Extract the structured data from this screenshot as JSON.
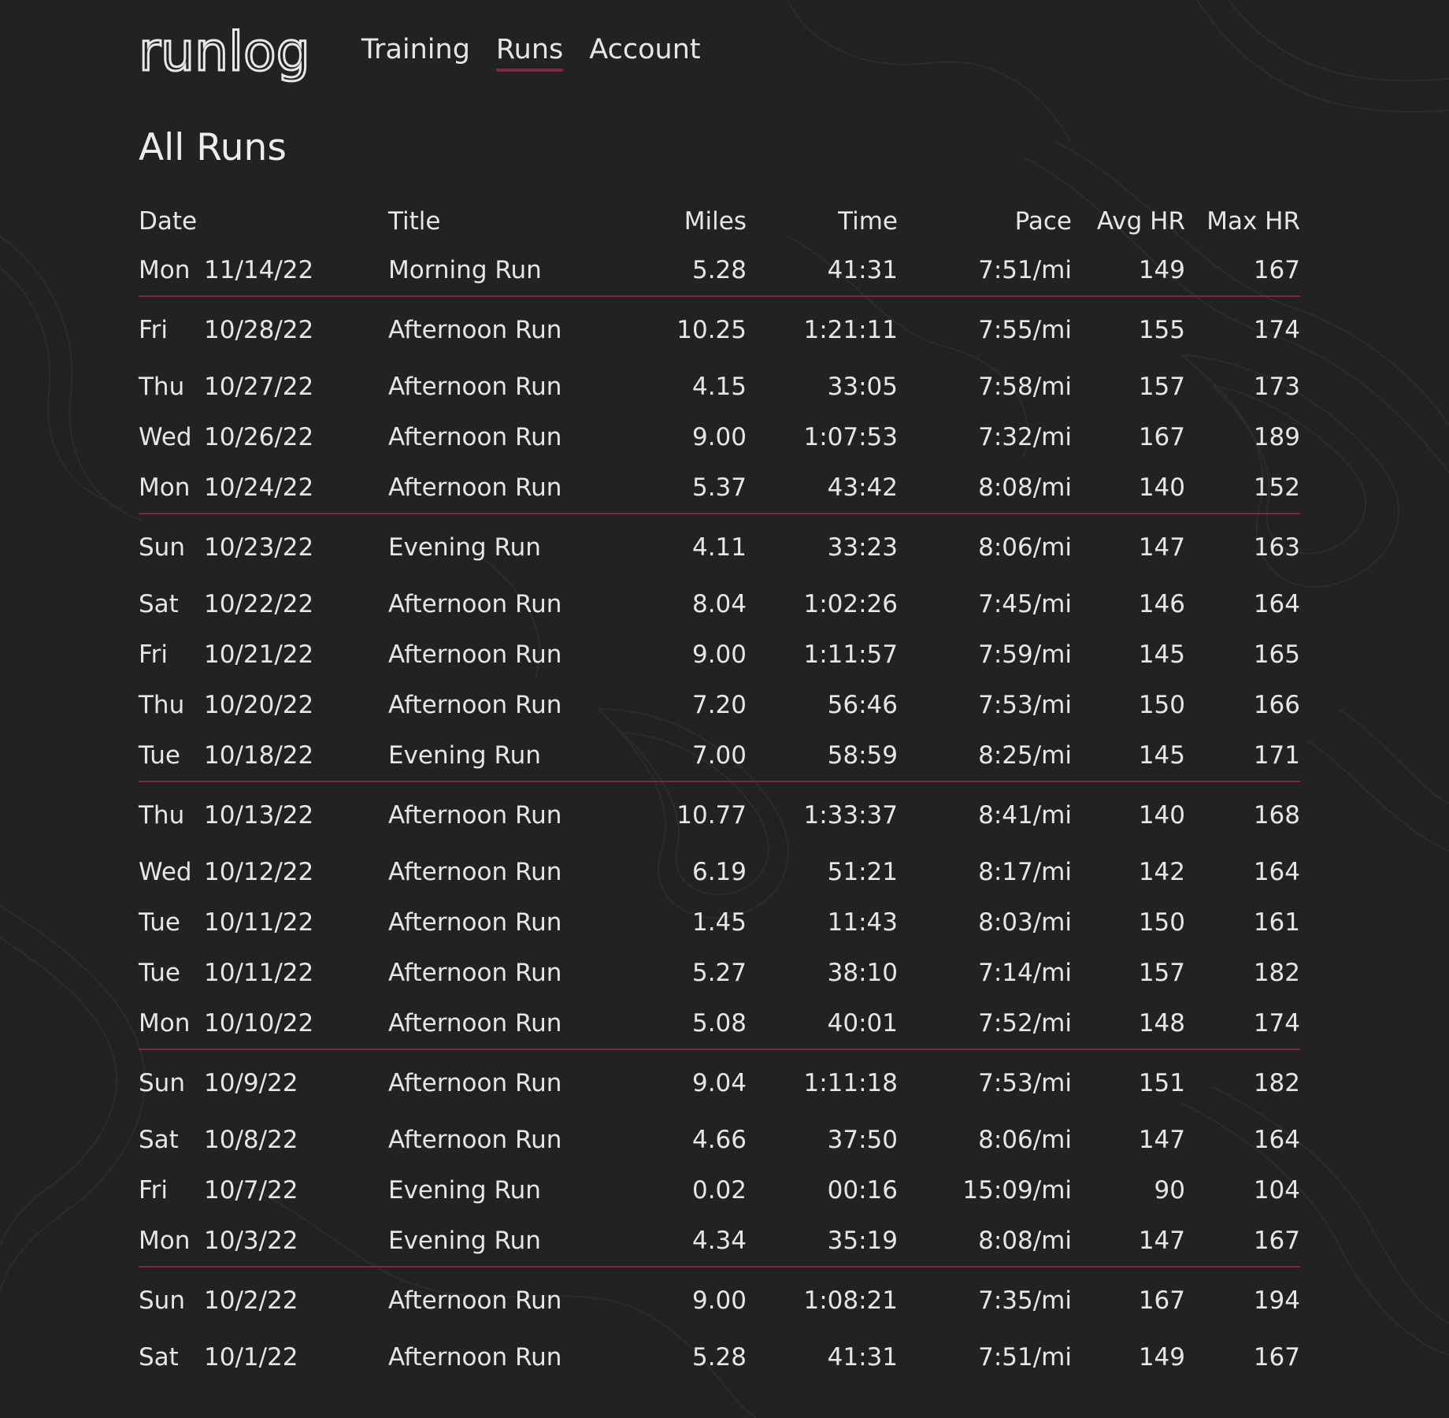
{
  "brand": {
    "logo": "runlog"
  },
  "nav": [
    {
      "label": "Training",
      "active": false
    },
    {
      "label": "Runs",
      "active": true
    },
    {
      "label": "Account",
      "active": false
    }
  ],
  "page_title": "All Runs",
  "colors": {
    "background": "#222222",
    "text": "#e6e6e6",
    "accent": "#7a2a40"
  },
  "columns": [
    "Date",
    "Title",
    "Miles",
    "Time",
    "Pace",
    "Avg HR",
    "Max HR"
  ],
  "runs": [
    {
      "day": "Mon",
      "date": "11/14/22",
      "title": "Morning Run",
      "miles": "5.28",
      "time": "41:31",
      "pace": "7:51/mi",
      "avg_hr": "149",
      "max_hr": "167",
      "week_start": false
    },
    {
      "day": "Fri",
      "date": "10/28/22",
      "title": "Afternoon Run",
      "miles": "10.25",
      "time": "1:21:11",
      "pace": "7:55/mi",
      "avg_hr": "155",
      "max_hr": "174",
      "week_start": true
    },
    {
      "day": "Thu",
      "date": "10/27/22",
      "title": "Afternoon Run",
      "miles": "4.15",
      "time": "33:05",
      "pace": "7:58/mi",
      "avg_hr": "157",
      "max_hr": "173",
      "week_start": false
    },
    {
      "day": "Wed",
      "date": "10/26/22",
      "title": "Afternoon Run",
      "miles": "9.00",
      "time": "1:07:53",
      "pace": "7:32/mi",
      "avg_hr": "167",
      "max_hr": "189",
      "week_start": false
    },
    {
      "day": "Mon",
      "date": "10/24/22",
      "title": "Afternoon Run",
      "miles": "5.37",
      "time": "43:42",
      "pace": "8:08/mi",
      "avg_hr": "140",
      "max_hr": "152",
      "week_start": false
    },
    {
      "day": "Sun",
      "date": "10/23/22",
      "title": "Evening Run",
      "miles": "4.11",
      "time": "33:23",
      "pace": "8:06/mi",
      "avg_hr": "147",
      "max_hr": "163",
      "week_start": true
    },
    {
      "day": "Sat",
      "date": "10/22/22",
      "title": "Afternoon Run",
      "miles": "8.04",
      "time": "1:02:26",
      "pace": "7:45/mi",
      "avg_hr": "146",
      "max_hr": "164",
      "week_start": false
    },
    {
      "day": "Fri",
      "date": "10/21/22",
      "title": "Afternoon Run",
      "miles": "9.00",
      "time": "1:11:57",
      "pace": "7:59/mi",
      "avg_hr": "145",
      "max_hr": "165",
      "week_start": false
    },
    {
      "day": "Thu",
      "date": "10/20/22",
      "title": "Afternoon Run",
      "miles": "7.20",
      "time": "56:46",
      "pace": "7:53/mi",
      "avg_hr": "150",
      "max_hr": "166",
      "week_start": false
    },
    {
      "day": "Tue",
      "date": "10/18/22",
      "title": "Evening Run",
      "miles": "7.00",
      "time": "58:59",
      "pace": "8:25/mi",
      "avg_hr": "145",
      "max_hr": "171",
      "week_start": false
    },
    {
      "day": "Thu",
      "date": "10/13/22",
      "title": "Afternoon Run",
      "miles": "10.77",
      "time": "1:33:37",
      "pace": "8:41/mi",
      "avg_hr": "140",
      "max_hr": "168",
      "week_start": true
    },
    {
      "day": "Wed",
      "date": "10/12/22",
      "title": "Afternoon Run",
      "miles": "6.19",
      "time": "51:21",
      "pace": "8:17/mi",
      "avg_hr": "142",
      "max_hr": "164",
      "week_start": false
    },
    {
      "day": "Tue",
      "date": "10/11/22",
      "title": "Afternoon Run",
      "miles": "1.45",
      "time": "11:43",
      "pace": "8:03/mi",
      "avg_hr": "150",
      "max_hr": "161",
      "week_start": false
    },
    {
      "day": "Tue",
      "date": "10/11/22",
      "title": "Afternoon Run",
      "miles": "5.27",
      "time": "38:10",
      "pace": "7:14/mi",
      "avg_hr": "157",
      "max_hr": "182",
      "week_start": false
    },
    {
      "day": "Mon",
      "date": "10/10/22",
      "title": "Afternoon Run",
      "miles": "5.08",
      "time": "40:01",
      "pace": "7:52/mi",
      "avg_hr": "148",
      "max_hr": "174",
      "week_start": false
    },
    {
      "day": "Sun",
      "date": "10/9/22",
      "title": "Afternoon Run",
      "miles": "9.04",
      "time": "1:11:18",
      "pace": "7:53/mi",
      "avg_hr": "151",
      "max_hr": "182",
      "week_start": true
    },
    {
      "day": "Sat",
      "date": "10/8/22",
      "title": "Afternoon Run",
      "miles": "4.66",
      "time": "37:50",
      "pace": "8:06/mi",
      "avg_hr": "147",
      "max_hr": "164",
      "week_start": false
    },
    {
      "day": "Fri",
      "date": "10/7/22",
      "title": "Evening Run",
      "miles": "0.02",
      "time": "00:16",
      "pace": "15:09/mi",
      "avg_hr": "90",
      "max_hr": "104",
      "week_start": false
    },
    {
      "day": "Mon",
      "date": "10/3/22",
      "title": "Evening Run",
      "miles": "4.34",
      "time": "35:19",
      "pace": "8:08/mi",
      "avg_hr": "147",
      "max_hr": "167",
      "week_start": false
    },
    {
      "day": "Sun",
      "date": "10/2/22",
      "title": "Afternoon Run",
      "miles": "9.00",
      "time": "1:08:21",
      "pace": "7:35/mi",
      "avg_hr": "167",
      "max_hr": "194",
      "week_start": true
    },
    {
      "day": "Sat",
      "date": "10/1/22",
      "title": "Afternoon Run",
      "miles": "5.28",
      "time": "41:31",
      "pace": "7:51/mi",
      "avg_hr": "149",
      "max_hr": "167",
      "week_start": false
    }
  ]
}
